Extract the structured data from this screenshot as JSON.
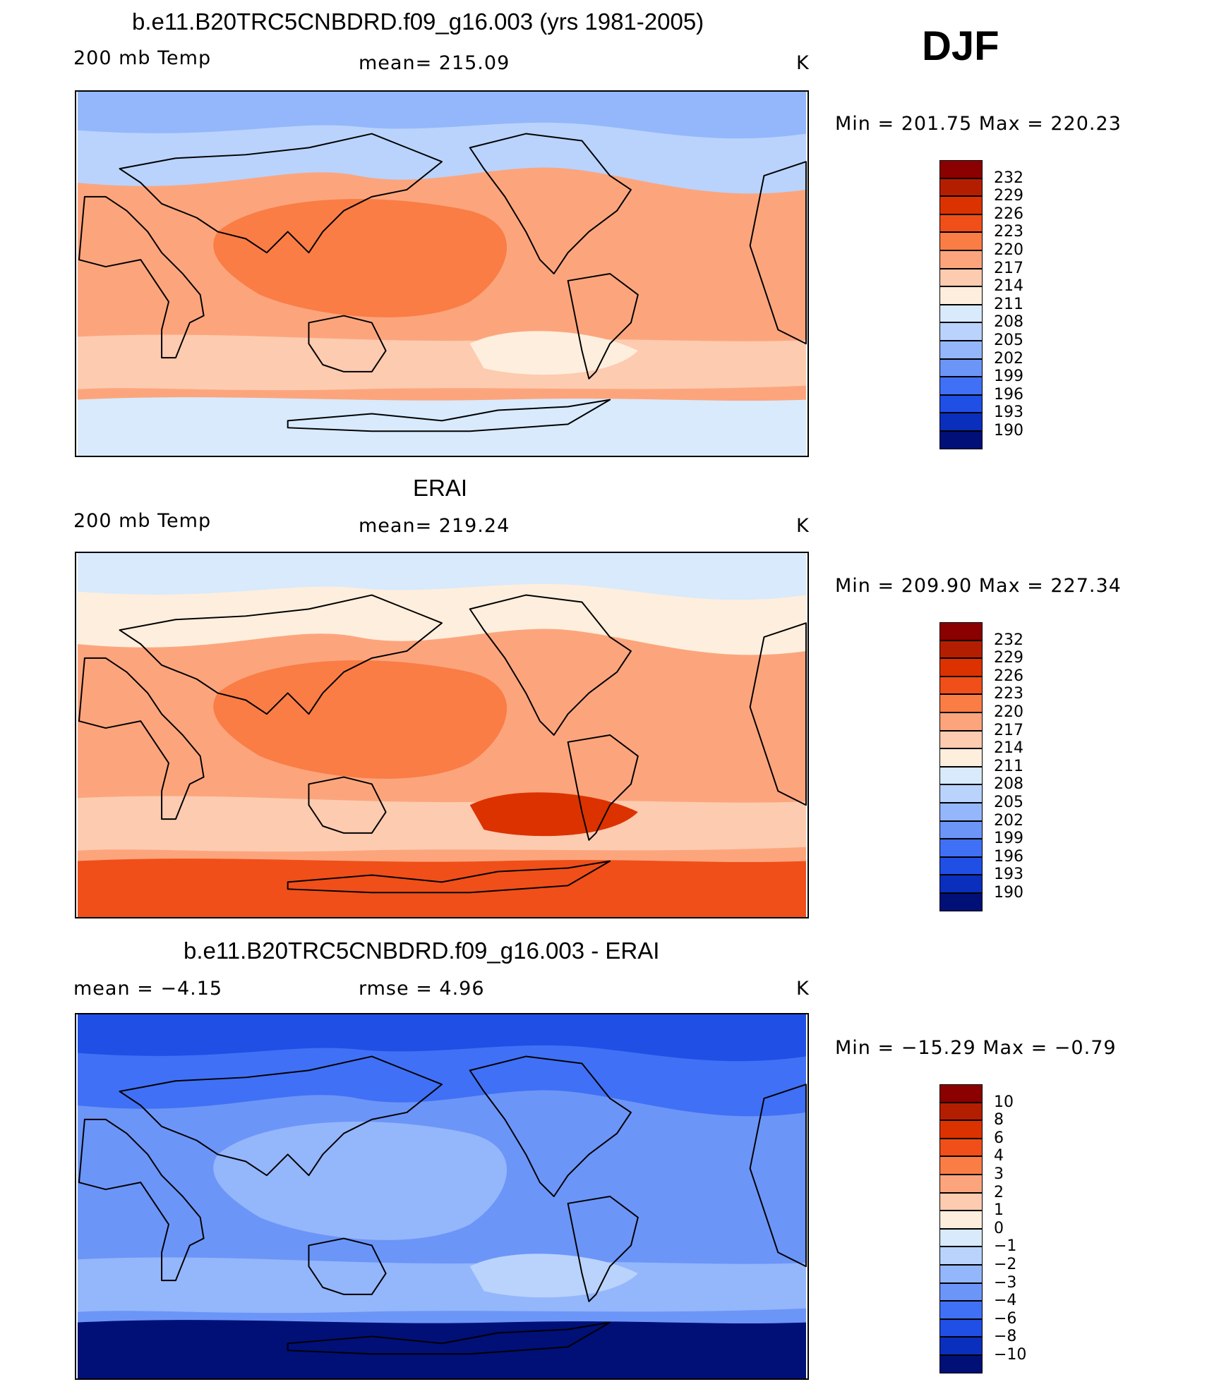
{
  "season": "DJF",
  "panels": [
    {
      "id": "model",
      "title": "b.e11.B20TRC5CNBDRD.f09_g16.003 (yrs 1981-2005)",
      "left_label": "200 mb Temp",
      "center_label": "mean=  215.09",
      "units": "K",
      "minmax": "Min  =  201.75  Max  =  220.23",
      "colorbar": {
        "labels": [
          "232",
          "229",
          "226",
          "223",
          "220",
          "217",
          "214",
          "211",
          "208",
          "205",
          "202",
          "199",
          "196",
          "193",
          "190"
        ],
        "colors": [
          "#8b0000",
          "#b41e00",
          "#dc3200",
          "#f04f19",
          "#fa7d46",
          "#fca57d",
          "#fdcbb0",
          "#feeedd",
          "#d8eafc",
          "#b9d3fc",
          "#94b6fb",
          "#6c95f8",
          "#4070f5",
          "#1f4fe5",
          "#0a2fbd",
          "#001077"
        ]
      },
      "fields": {
        "background": "#fca57d",
        "high_lat_north": "#b9d3fc",
        "polar_north": "#94b6fb",
        "polar_south": "#d8eafc",
        "subtropic_band": "#fdcbb0",
        "warm_core": "#fa7d46",
        "cool_patch": "#feeedd"
      }
    },
    {
      "id": "obs",
      "title": "ERAI",
      "left_label": "200 mb Temp",
      "center_label": "mean=  219.24",
      "units": "K",
      "minmax": "Min  =  209.90  Max  =  227.34",
      "colorbar": {
        "labels": [
          "232",
          "229",
          "226",
          "223",
          "220",
          "217",
          "214",
          "211",
          "208",
          "205",
          "202",
          "199",
          "196",
          "193",
          "190"
        ],
        "colors": [
          "#8b0000",
          "#b41e00",
          "#dc3200",
          "#f04f19",
          "#fa7d46",
          "#fca57d",
          "#fdcbb0",
          "#feeedd",
          "#d8eafc",
          "#b9d3fc",
          "#94b6fb",
          "#6c95f8",
          "#4070f5",
          "#1f4fe5",
          "#0a2fbd",
          "#001077"
        ]
      },
      "fields": {
        "background": "#fca57d",
        "high_lat_north": "#feeedd",
        "polar_north": "#d8eafc",
        "polar_south": "#f04f19",
        "subtropic_band": "#fdcbb0",
        "warm_core": "#fa7d46",
        "cool_patch": "#dc3200"
      }
    },
    {
      "id": "diff",
      "title": "b.e11.B20TRC5CNBDRD.f09_g16.003 - ERAI",
      "left_label": "mean =    −4.15",
      "center_label": "rmse =     4.96",
      "units": "K",
      "minmax": "Min  =  −15.29  Max  =   −0.79",
      "colorbar": {
        "labels": [
          "10",
          "8",
          "6",
          "4",
          "3",
          "2",
          "1",
          "0",
          "−1",
          "−2",
          "−3",
          "−4",
          "−6",
          "−8",
          "−10"
        ],
        "colors": [
          "#8b0000",
          "#b41e00",
          "#dc3200",
          "#f04f19",
          "#fa7d46",
          "#fca57d",
          "#fdcbb0",
          "#feeedd",
          "#d8eafc",
          "#b9d3fc",
          "#94b6fb",
          "#6c95f8",
          "#4070f5",
          "#1f4fe5",
          "#0a2fbd",
          "#001077"
        ]
      },
      "fields": {
        "background": "#6c95f8",
        "high_lat_north": "#4070f5",
        "polar_north": "#1f4fe5",
        "polar_south": "#001077",
        "subtropic_band": "#94b6fb",
        "warm_core": "#94b6fb",
        "cool_patch": "#b9d3fc"
      }
    }
  ]
}
